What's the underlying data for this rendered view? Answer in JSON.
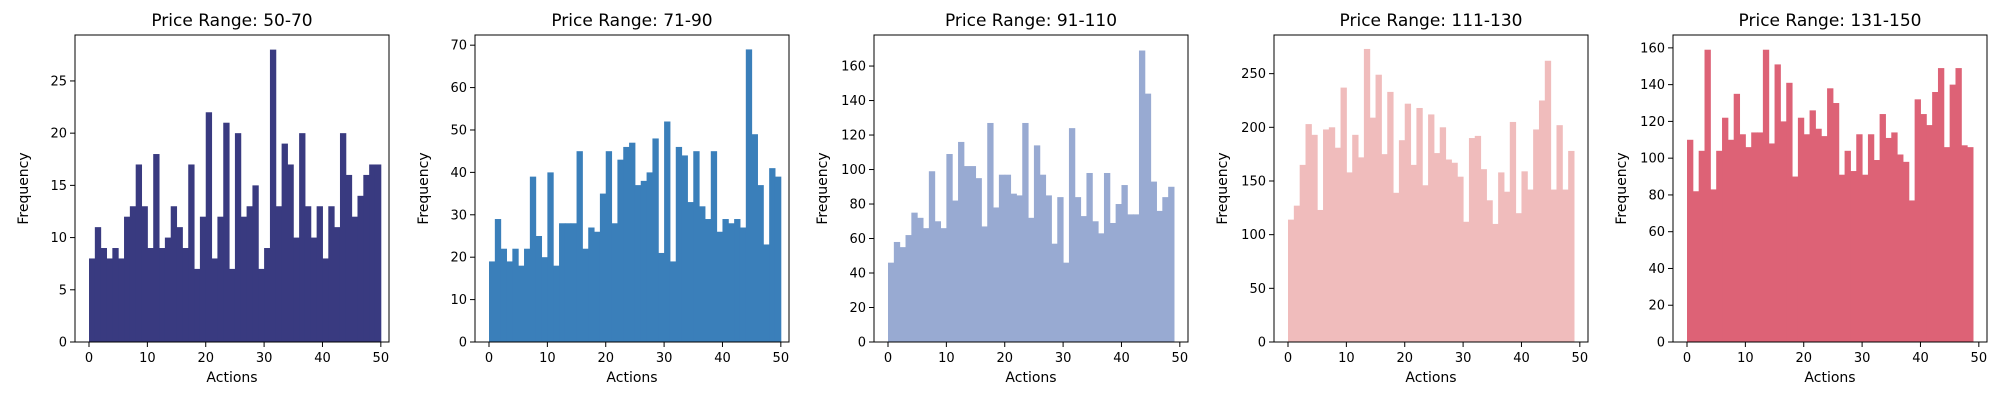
{
  "chart_data": [
    {
      "type": "bar",
      "title": "Price Range: 50-70",
      "xlabel": "Actions",
      "ylabel": "Frequency",
      "color": "#393a80",
      "x": [
        0,
        1,
        2,
        3,
        4,
        5,
        6,
        7,
        8,
        9,
        10,
        11,
        12,
        13,
        14,
        15,
        16,
        17,
        18,
        19,
        20,
        21,
        22,
        23,
        24,
        25,
        26,
        27,
        28,
        29,
        30,
        31,
        32,
        33,
        34,
        35,
        36,
        37,
        38,
        39,
        40,
        41,
        42,
        43,
        44,
        45,
        46,
        47,
        48,
        49
      ],
      "values": [
        8,
        11,
        9,
        8,
        9,
        8,
        12,
        13,
        17,
        13,
        9,
        18,
        9,
        10,
        13,
        11,
        9,
        17,
        7,
        12,
        22,
        8,
        12,
        21,
        7,
        20,
        12,
        13,
        15,
        7,
        9,
        28,
        13,
        19,
        17,
        10,
        20,
        13,
        10,
        13,
        8,
        13,
        11,
        20,
        16,
        12,
        14,
        16,
        17,
        17
      ],
      "xlim": [
        -2.4,
        51.4
      ],
      "ylim": [
        0,
        29.4
      ],
      "xticks": [
        0,
        10,
        20,
        30,
        40,
        50
      ],
      "yticks": [
        0,
        5,
        10,
        15,
        20,
        25
      ]
    },
    {
      "type": "bar",
      "title": "Price Range: 71-90",
      "xlabel": "Actions",
      "ylabel": "Frequency",
      "color": "#3a7fba",
      "x": [
        0,
        1,
        2,
        3,
        4,
        5,
        6,
        7,
        8,
        9,
        10,
        11,
        12,
        13,
        14,
        15,
        16,
        17,
        18,
        19,
        20,
        21,
        22,
        23,
        24,
        25,
        26,
        27,
        28,
        29,
        30,
        31,
        32,
        33,
        34,
        35,
        36,
        37,
        38,
        39,
        40,
        41,
        42,
        43,
        44,
        45,
        46,
        47,
        48,
        49
      ],
      "values": [
        19,
        29,
        22,
        19,
        22,
        18,
        22,
        39,
        25,
        20,
        40,
        18,
        28,
        28,
        28,
        45,
        22,
        27,
        26,
        35,
        45,
        28,
        43,
        46,
        47,
        37,
        38,
        40,
        48,
        21,
        52,
        19,
        46,
        44,
        33,
        45,
        32,
        29,
        45,
        26,
        29,
        28,
        29,
        27,
        69,
        49,
        37,
        23,
        41,
        39
      ],
      "xlim": [
        -2.4,
        51.4
      ],
      "ylim": [
        0,
        72.4
      ],
      "xticks": [
        0,
        10,
        20,
        30,
        40,
        50
      ],
      "yticks": [
        0,
        10,
        20,
        30,
        40,
        50,
        60,
        70
      ]
    },
    {
      "type": "bar",
      "title": "Price Range: 91-110",
      "xlabel": "Actions",
      "ylabel": "Frequency",
      "color": "#98aad2",
      "x": [
        0,
        1,
        2,
        3,
        4,
        5,
        6,
        7,
        8,
        9,
        10,
        11,
        12,
        13,
        14,
        15,
        16,
        17,
        18,
        19,
        20,
        21,
        22,
        23,
        24,
        25,
        26,
        27,
        28,
        29,
        30,
        31,
        32,
        33,
        34,
        35,
        36,
        37,
        38,
        39,
        40,
        41,
        42,
        43,
        44,
        45,
        46,
        47,
        48,
        49
      ],
      "values": [
        46,
        58,
        55,
        62,
        75,
        72,
        66,
        99,
        70,
        66,
        109,
        82,
        116,
        102,
        102,
        95,
        67,
        127,
        78,
        97,
        97,
        86,
        85,
        127,
        72,
        114,
        97,
        85,
        57,
        84,
        46,
        124,
        84,
        73,
        98,
        70,
        63,
        98,
        69,
        80,
        91,
        74,
        74,
        169,
        144,
        93,
        76,
        84,
        90,
        0
      ],
      "xlim": [
        -2.4,
        51.4
      ],
      "ylim": [
        0,
        178
      ],
      "xticks": [
        0,
        10,
        20,
        30,
        40,
        50
      ],
      "yticks": [
        0,
        20,
        40,
        60,
        80,
        100,
        120,
        140,
        160
      ]
    },
    {
      "type": "bar",
      "title": "Price Range: 111-130",
      "xlabel": "Actions",
      "ylabel": "Frequency",
      "color": "#f0bcbc",
      "x": [
        0,
        1,
        2,
        3,
        4,
        5,
        6,
        7,
        8,
        9,
        10,
        11,
        12,
        13,
        14,
        15,
        16,
        17,
        18,
        19,
        20,
        21,
        22,
        23,
        24,
        25,
        26,
        27,
        28,
        29,
        30,
        31,
        32,
        33,
        34,
        35,
        36,
        37,
        38,
        39,
        40,
        41,
        42,
        43,
        44,
        45,
        46,
        47,
        48,
        49
      ],
      "values": [
        114,
        127,
        165,
        203,
        193,
        123,
        198,
        200,
        181,
        237,
        158,
        193,
        172,
        273,
        209,
        249,
        175,
        233,
        139,
        188,
        222,
        165,
        218,
        146,
        212,
        176,
        200,
        170,
        167,
        154,
        112,
        190,
        192,
        161,
        132,
        110,
        158,
        140,
        205,
        120,
        159,
        142,
        198,
        225,
        262,
        142,
        202,
        142,
        178,
        0
      ],
      "xlim": [
        -2.4,
        51.4
      ],
      "ylim": [
        0,
        286
      ],
      "xticks": [
        0,
        10,
        20,
        30,
        40,
        50
      ],
      "yticks": [
        0,
        50,
        100,
        150,
        200,
        250
      ]
    },
    {
      "type": "bar",
      "title": "Price Range: 131-150",
      "xlabel": "Actions",
      "ylabel": "Frequency",
      "color": "#dd6276",
      "x": [
        0,
        1,
        2,
        3,
        4,
        5,
        6,
        7,
        8,
        9,
        10,
        11,
        12,
        13,
        14,
        15,
        16,
        17,
        18,
        19,
        20,
        21,
        22,
        23,
        24,
        25,
        26,
        27,
        28,
        29,
        30,
        31,
        32,
        33,
        34,
        35,
        36,
        37,
        38,
        39,
        40,
        41,
        42,
        43,
        44,
        45,
        46,
        47,
        48,
        49
      ],
      "values": [
        110,
        82,
        104,
        159,
        83,
        104,
        122,
        110,
        135,
        113,
        106,
        114,
        114,
        159,
        108,
        151,
        120,
        141,
        90,
        122,
        113,
        126,
        116,
        112,
        138,
        130,
        91,
        104,
        93,
        113,
        91,
        113,
        99,
        124,
        111,
        114,
        102,
        98,
        77,
        132,
        124,
        118,
        136,
        149,
        106,
        140,
        149,
        107,
        106,
        0
      ],
      "xlim": [
        -2.4,
        51.4
      ],
      "ylim": [
        0,
        167
      ],
      "xticks": [
        0,
        10,
        20,
        30,
        40,
        50
      ],
      "yticks": [
        0,
        20,
        40,
        60,
        80,
        100,
        120,
        140,
        160
      ]
    }
  ]
}
